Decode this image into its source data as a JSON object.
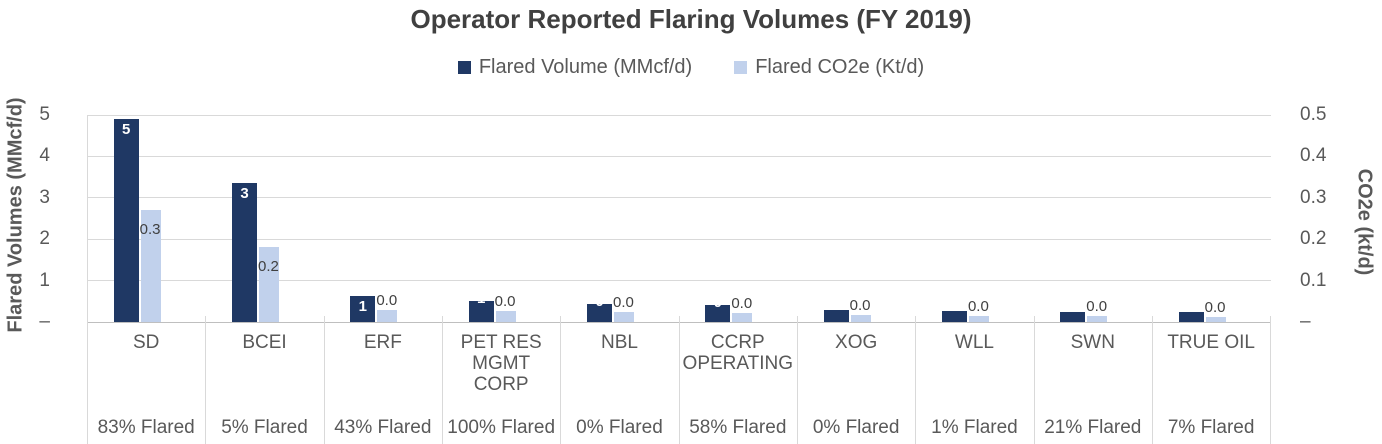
{
  "title": "Operator Reported Flaring Volumes (FY 2019)",
  "legend": {
    "items": [
      {
        "label": "Flared Volume (MMcf/d)",
        "color": "#1F3864"
      },
      {
        "label": "Flared CO2e (Kt/d)",
        "color": "#C1D1EC"
      }
    ]
  },
  "axes": {
    "left": {
      "title": "Flared Volumes (MMcf/d)",
      "ticks": [
        "5",
        "4",
        "3",
        "2",
        "1",
        "–"
      ],
      "max": 5
    },
    "right": {
      "title": "CO2e (kt/d)",
      "ticks": [
        "0.5",
        "0.4",
        "0.3",
        "0.2",
        "0.1",
        "–"
      ],
      "max": 0.5
    }
  },
  "chart_data": {
    "type": "bar",
    "title": "Operator Reported Flaring Volumes (FY 2019)",
    "categories": [
      "SD",
      "BCEI",
      "ERF",
      "PET RES MGMT CORP",
      "NBL",
      "CCRP OPERATING",
      "XOG",
      "WLL",
      "SWN",
      "TRUE OIL"
    ],
    "category_display": [
      "SD",
      "BCEI",
      "ERF",
      "PET RES\nMGMT\nCORP",
      "NBL",
      "CCRP\nOPERATING",
      "XOG",
      "WLL",
      "SWN",
      "TRUE OIL"
    ],
    "pct_flared": [
      "83% Flared",
      "5% Flared",
      "43% Flared",
      "100% Flared",
      "0% Flared",
      "58% Flared",
      "0% Flared",
      "1% Flared",
      "21% Flared",
      "7% Flared"
    ],
    "series": [
      {
        "name": "Flared Volume (MMcf/d)",
        "axis": "left",
        "color": "#1F3864",
        "values": [
          4.9,
          3.36,
          0.63,
          0.51,
          0.43,
          0.41,
          0.29,
          0.27,
          0.25,
          0.23
        ],
        "labels": [
          "5",
          "3",
          "1",
          "1",
          "0",
          "0",
          "",
          "",
          "",
          ""
        ]
      },
      {
        "name": "Flared CO2e (Kt/d)",
        "axis": "right",
        "color": "#C1D1EC",
        "values": [
          0.27,
          0.18,
          0.029,
          0.026,
          0.024,
          0.022,
          0.017,
          0.015,
          0.014,
          0.012
        ],
        "labels": [
          "0.3",
          "0.2",
          "0.0",
          "0.0",
          "0.0",
          "0.0",
          "0.0",
          "0.0",
          "0.0",
          "0.0"
        ]
      }
    ],
    "left_ylim": [
      0,
      5
    ],
    "right_ylim": [
      0,
      0.5
    ],
    "grid": true,
    "legend_position": "top"
  }
}
